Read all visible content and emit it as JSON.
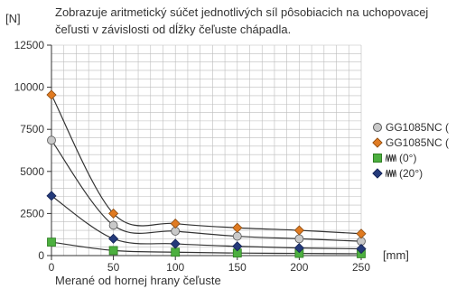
{
  "chart_data": {
    "type": "line",
    "title": "Zobrazuje aritmetický súčet jednotlivých síl pôsobiacich na uchopovacej",
    "subtitle": "čeľusti v závislosti od dĺžky čeľuste chápadla.",
    "ylabel": "[N]",
    "xunit": "[mm]",
    "xlabel": "Merané od hornej hrany čeľuste",
    "xlim": [
      0,
      250
    ],
    "ylim": [
      0,
      12500
    ],
    "xticks": [
      "0",
      "50",
      "100",
      "150",
      "200",
      "250"
    ],
    "yticks": [
      "0",
      "2500",
      "5000",
      "7500",
      "10000",
      "12500"
    ],
    "grid": true,
    "legend_position": "right",
    "x": [
      0,
      50,
      100,
      150,
      200,
      250
    ],
    "series": [
      {
        "name": "GG1085NC (",
        "marker": "circle",
        "color": "#c9c9c9",
        "stroke": "#555555",
        "values": [
          6850,
          1800,
          1450,
          1150,
          1000,
          850
        ]
      },
      {
        "name": "GG1085NC (",
        "marker": "diamond",
        "color": "#e07b22",
        "stroke": "#8a4a10",
        "values": [
          9550,
          2500,
          1900,
          1650,
          1500,
          1300
        ]
      },
      {
        "name": "(0°)",
        "marker": "square",
        "color": "#4caf3f",
        "stroke": "#2e7d22",
        "values": [
          800,
          300,
          200,
          150,
          130,
          110
        ]
      },
      {
        "name": "(20°)",
        "marker": "diamond",
        "color": "#243a7a",
        "stroke": "#152354",
        "values": [
          3550,
          1000,
          700,
          550,
          450,
          400
        ]
      }
    ]
  }
}
